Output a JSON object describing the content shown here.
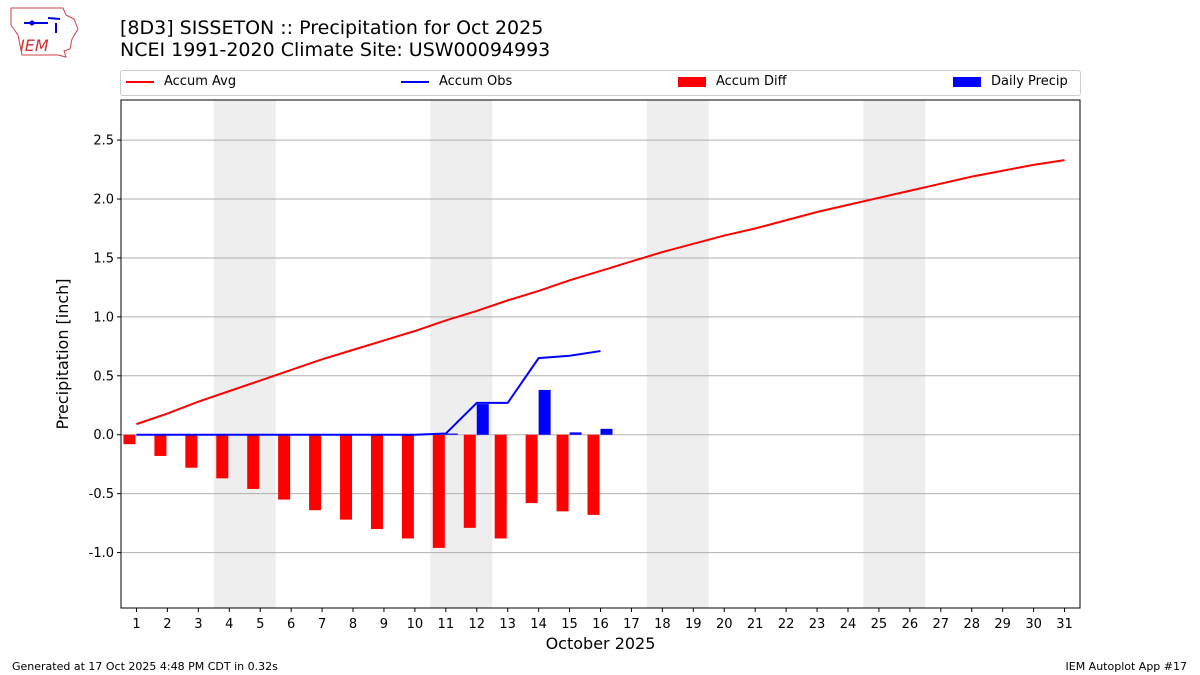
{
  "header": {
    "title_line1": "[8D3] SISSETON :: Precipitation for Oct 2025",
    "title_line2": "NCEI 1991-2020 Climate Site: USW00094993",
    "logo_text": "IEM"
  },
  "footer": {
    "left": "Generated at 17 Oct 2025 4:48 PM CDT in 0.32s",
    "right": "IEM Autoplot App #17"
  },
  "colors": {
    "avg": "#ff0000",
    "obs": "#0000ff",
    "diff": "#ff0000",
    "daily": "#0000ff",
    "weekend": "#eeeeee"
  },
  "chart_data": {
    "type": "bar",
    "xlabel": "October 2025",
    "ylabel": "Precipitation [inch]",
    "ylim": [
      -1.47,
      2.84
    ],
    "xlim": [
      0.5,
      31.5
    ],
    "yticks": [
      "-1.0",
      "-0.5",
      "0.0",
      "0.5",
      "1.0",
      "1.5",
      "2.0",
      "2.5"
    ],
    "ytick_values": [
      -1.0,
      -0.5,
      0.0,
      0.5,
      1.0,
      1.5,
      2.0,
      2.5
    ],
    "grid": "y",
    "legend_placement": "top",
    "weekend_spans": [
      [
        3.5,
        5.5
      ],
      [
        10.5,
        12.5
      ],
      [
        17.5,
        19.5
      ],
      [
        24.5,
        26.5
      ]
    ],
    "days": [
      1,
      2,
      3,
      4,
      5,
      6,
      7,
      8,
      9,
      10,
      11,
      12,
      13,
      14,
      15,
      16,
      17,
      18,
      19,
      20,
      21,
      22,
      23,
      24,
      25,
      26,
      27,
      28,
      29,
      30,
      31
    ],
    "series": [
      {
        "name": "Accum Avg",
        "kind": "line",
        "values": [
          0.09,
          0.18,
          0.28,
          0.37,
          0.46,
          0.55,
          0.64,
          0.72,
          0.8,
          0.88,
          0.97,
          1.05,
          1.14,
          1.22,
          1.31,
          1.39,
          1.47,
          1.55,
          1.62,
          1.69,
          1.75,
          1.82,
          1.89,
          1.95,
          2.01,
          2.07,
          2.13,
          2.19,
          2.24,
          2.29,
          2.33
        ]
      },
      {
        "name": "Accum Obs",
        "kind": "line",
        "values": [
          0,
          0,
          0,
          0,
          0,
          0,
          0,
          0,
          0,
          0,
          0.01,
          0.27,
          0.27,
          0.65,
          0.67,
          0.71
        ]
      },
      {
        "name": "Accum Diff",
        "kind": "bar",
        "values": [
          -0.08,
          -0.18,
          -0.28,
          -0.37,
          -0.46,
          -0.55,
          -0.64,
          -0.72,
          -0.8,
          -0.88,
          -0.96,
          -0.79,
          -0.88,
          -0.58,
          -0.65,
          -0.68
        ]
      },
      {
        "name": "Daily Precip",
        "kind": "bar",
        "values": [
          0,
          0,
          0,
          0,
          0,
          0,
          0,
          0,
          0,
          0,
          0.01,
          0.26,
          0,
          0.38,
          0.02,
          0.05
        ]
      }
    ]
  }
}
